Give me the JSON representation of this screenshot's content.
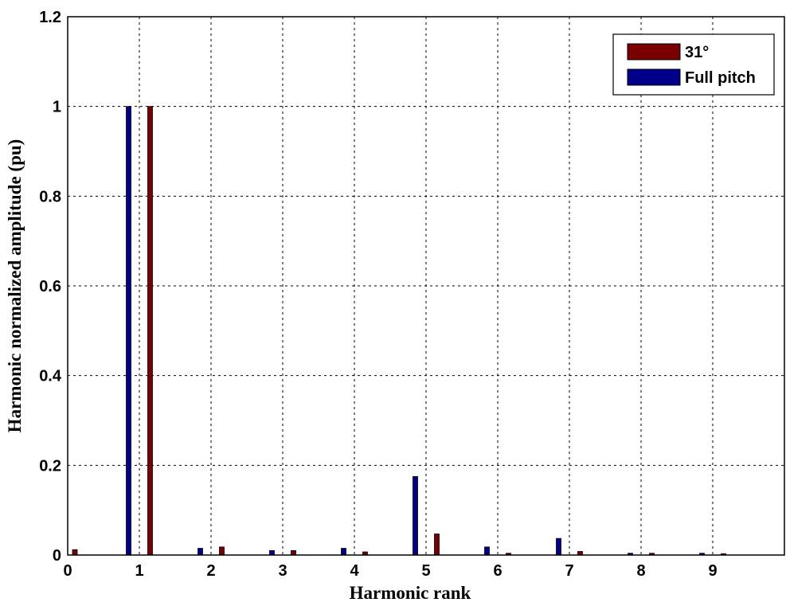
{
  "chart_data": {
    "type": "bar",
    "xlabel": "Harmonic rank",
    "ylabel": "Harmonic normalized amplitude (pu)",
    "xlim": [
      0,
      10
    ],
    "ylim": [
      0,
      1.2
    ],
    "xticks": [
      "0",
      "1",
      "2",
      "3",
      "4",
      "5",
      "6",
      "7",
      "8",
      "9"
    ],
    "yticks": [
      "0",
      "0.2",
      "0.4",
      "0.6",
      "0.8",
      "1",
      "1.2"
    ],
    "grid": true,
    "legend_position": "top-right",
    "series": [
      {
        "name": "31°",
        "color": "#7a0000",
        "points": [
          {
            "x": 0.1,
            "y": 0.012
          },
          {
            "x": 1.15,
            "y": 1.0
          },
          {
            "x": 2.15,
            "y": 0.018
          },
          {
            "x": 3.15,
            "y": 0.01
          },
          {
            "x": 4.15,
            "y": 0.007
          },
          {
            "x": 5.15,
            "y": 0.047
          },
          {
            "x": 6.15,
            "y": 0.004
          },
          {
            "x": 7.15,
            "y": 0.008
          },
          {
            "x": 8.15,
            "y": 0.004
          },
          {
            "x": 9.15,
            "y": 0.003
          }
        ]
      },
      {
        "name": "Full pitch",
        "color": "#00008b",
        "points": [
          {
            "x": 0.85,
            "y": 1.0
          },
          {
            "x": 1.85,
            "y": 0.015
          },
          {
            "x": 2.85,
            "y": 0.01
          },
          {
            "x": 3.85,
            "y": 0.015
          },
          {
            "x": 4.85,
            "y": 0.175
          },
          {
            "x": 5.85,
            "y": 0.018
          },
          {
            "x": 6.85,
            "y": 0.037
          },
          {
            "x": 7.85,
            "y": 0.004
          },
          {
            "x": 8.85,
            "y": 0.004
          }
        ]
      }
    ]
  }
}
